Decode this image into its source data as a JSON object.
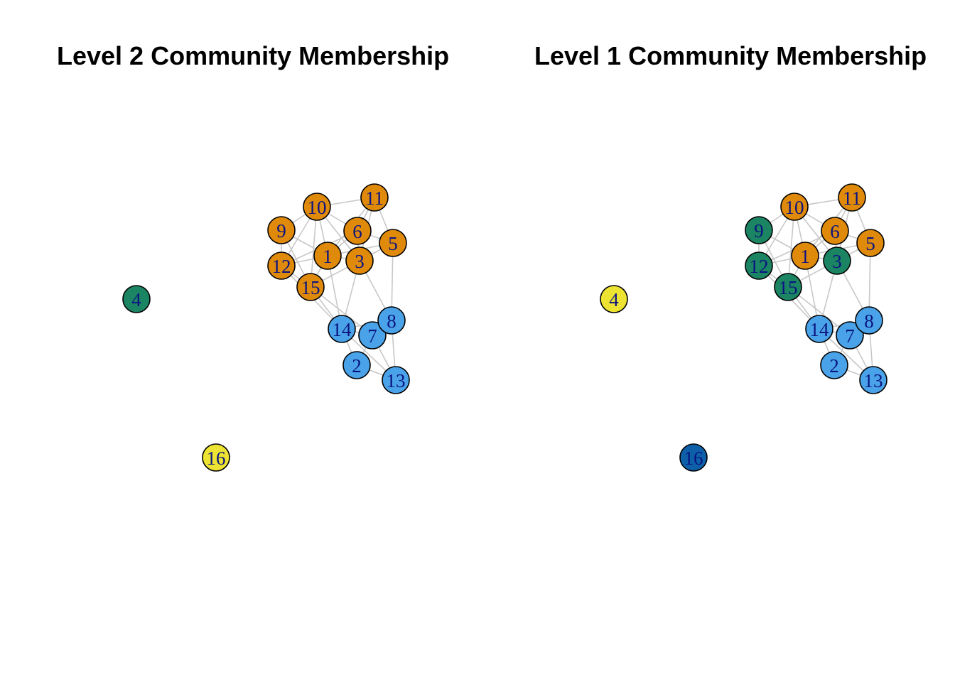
{
  "panels": [
    {
      "title": "Level 2 Community Membership",
      "nodes": [
        {
          "id": "1",
          "color": "#E08A0B",
          "label_color": "#0a1480"
        },
        {
          "id": "2",
          "color": "#4AA3E8",
          "label_color": "#0a1480"
        },
        {
          "id": "3",
          "color": "#E08A0B",
          "label_color": "#0a1480"
        },
        {
          "id": "4",
          "color": "#1B8462",
          "label_color": "#0a1480"
        },
        {
          "id": "5",
          "color": "#E08A0B",
          "label_color": "#0a1480"
        },
        {
          "id": "6",
          "color": "#E08A0B",
          "label_color": "#0a1480"
        },
        {
          "id": "7",
          "color": "#4AA3E8",
          "label_color": "#0a1480"
        },
        {
          "id": "8",
          "color": "#4AA3E8",
          "label_color": "#0a1480"
        },
        {
          "id": "9",
          "color": "#E08A0B",
          "label_color": "#0a1480"
        },
        {
          "id": "10",
          "color": "#E08A0B",
          "label_color": "#0a1480"
        },
        {
          "id": "11",
          "color": "#E08A0B",
          "label_color": "#0a1480"
        },
        {
          "id": "12",
          "color": "#E08A0B",
          "label_color": "#0a1480"
        },
        {
          "id": "13",
          "color": "#4AA3E8",
          "label_color": "#0a1480"
        },
        {
          "id": "14",
          "color": "#4AA3E8",
          "label_color": "#0a1480"
        },
        {
          "id": "15",
          "color": "#E08A0B",
          "label_color": "#0a1480"
        },
        {
          "id": "16",
          "color": "#EDE332",
          "label_color": "#0a1480"
        }
      ]
    },
    {
      "title": "Level 1 Community Membership",
      "nodes": [
        {
          "id": "1",
          "color": "#E08A0B",
          "label_color": "#0a1480"
        },
        {
          "id": "2",
          "color": "#4AA3E8",
          "label_color": "#0a1480"
        },
        {
          "id": "3",
          "color": "#1B8462",
          "label_color": "#0a1480"
        },
        {
          "id": "4",
          "color": "#EDE332",
          "label_color": "#0a1480"
        },
        {
          "id": "5",
          "color": "#E08A0B",
          "label_color": "#0a1480"
        },
        {
          "id": "6",
          "color": "#E08A0B",
          "label_color": "#0a1480"
        },
        {
          "id": "7",
          "color": "#4AA3E8",
          "label_color": "#0a1480"
        },
        {
          "id": "8",
          "color": "#4AA3E8",
          "label_color": "#0a1480"
        },
        {
          "id": "9",
          "color": "#1B8462",
          "label_color": "#0a1480"
        },
        {
          "id": "10",
          "color": "#E08A0B",
          "label_color": "#0a1480"
        },
        {
          "id": "11",
          "color": "#E08A0B",
          "label_color": "#0a1480"
        },
        {
          "id": "12",
          "color": "#1B8462",
          "label_color": "#0a1480"
        },
        {
          "id": "13",
          "color": "#4AA3E8",
          "label_color": "#0a1480"
        },
        {
          "id": "14",
          "color": "#4AA3E8",
          "label_color": "#0a1480"
        },
        {
          "id": "15",
          "color": "#1B8462",
          "label_color": "#0a1480"
        },
        {
          "id": "16",
          "color": "#0D5FA8",
          "label_color": "#0a1480"
        }
      ]
    }
  ],
  "edges": [
    [
      "10",
      "11"
    ],
    [
      "10",
      "9"
    ],
    [
      "10",
      "12"
    ],
    [
      "10",
      "1"
    ],
    [
      "10",
      "6"
    ],
    [
      "10",
      "15"
    ],
    [
      "10",
      "3"
    ],
    [
      "11",
      "6"
    ],
    [
      "11",
      "5"
    ],
    [
      "11",
      "3"
    ],
    [
      "11",
      "1"
    ],
    [
      "9",
      "12"
    ],
    [
      "9",
      "1"
    ],
    [
      "9",
      "15"
    ],
    [
      "6",
      "5"
    ],
    [
      "6",
      "1"
    ],
    [
      "6",
      "3"
    ],
    [
      "6",
      "12"
    ],
    [
      "5",
      "3"
    ],
    [
      "5",
      "8"
    ],
    [
      "5",
      "1"
    ],
    [
      "12",
      "1"
    ],
    [
      "12",
      "15"
    ],
    [
      "12",
      "14"
    ],
    [
      "1",
      "15"
    ],
    [
      "1",
      "3"
    ],
    [
      "1",
      "14"
    ],
    [
      "15",
      "3"
    ],
    [
      "15",
      "14"
    ],
    [
      "15",
      "7"
    ],
    [
      "3",
      "14"
    ],
    [
      "3",
      "8"
    ],
    [
      "14",
      "7"
    ],
    [
      "14",
      "8"
    ],
    [
      "14",
      "13"
    ],
    [
      "14",
      "2"
    ],
    [
      "7",
      "8"
    ],
    [
      "7",
      "13"
    ],
    [
      "7",
      "2"
    ],
    [
      "8",
      "13"
    ],
    [
      "2",
      "13"
    ]
  ]
}
